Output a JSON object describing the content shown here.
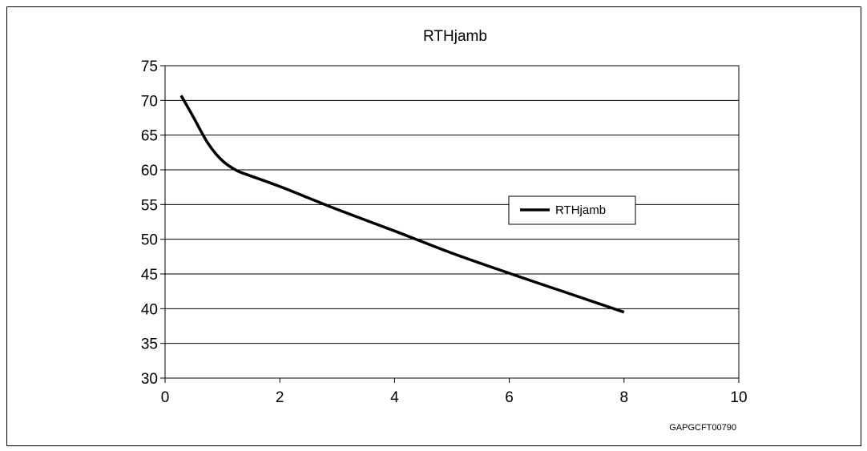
{
  "chart_data": {
    "type": "line",
    "title": "RTHjamb",
    "xlabel": "",
    "ylabel": "",
    "xlim": [
      0,
      10
    ],
    "ylim": [
      30,
      75
    ],
    "x_ticks": [
      "0",
      "2",
      "4",
      "6",
      "8",
      "10"
    ],
    "y_ticks": [
      "75",
      "70",
      "65",
      "60",
      "55",
      "50",
      "45",
      "40",
      "35",
      "30"
    ],
    "grid": "horizontal",
    "legend_position": "right",
    "series": [
      {
        "name": "RTHjamb",
        "color": "#000000",
        "x": [
          0.28,
          0.5,
          0.75,
          1.0,
          1.25,
          1.5,
          2.0,
          3.0,
          4.0,
          5.0,
          6.0,
          7.0,
          8.0
        ],
        "y": [
          70.7,
          67.5,
          63.8,
          61.3,
          59.9,
          59.1,
          57.6,
          54.3,
          51.2,
          48.0,
          45.1,
          42.3,
          39.5
        ]
      }
    ]
  },
  "figure_code": "GAPGCFT00790"
}
